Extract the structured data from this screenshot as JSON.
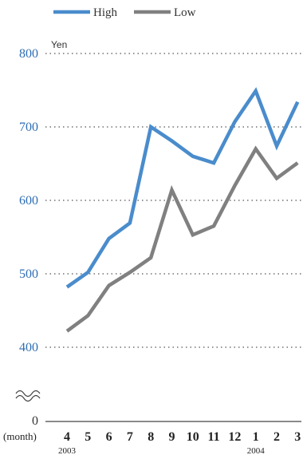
{
  "chart_data": {
    "type": "line",
    "categories": [
      "4",
      "5",
      "6",
      "7",
      "8",
      "9",
      "10",
      "11",
      "12",
      "1",
      "2",
      "3"
    ],
    "x_prefix_label": "(month)",
    "year_labels": [
      {
        "index": 0,
        "label": "2003"
      },
      {
        "index": 9,
        "label": "2004"
      }
    ],
    "y_unit": "Yen",
    "ylim": [
      400,
      800
    ],
    "y_ticks": [
      400,
      500,
      600,
      700,
      800
    ],
    "y_zero_label": "0",
    "axis_break": true,
    "grid": "dotted-horizontal",
    "legend_position": "top-left",
    "series": [
      {
        "name": "High",
        "color": "#4a8ccc",
        "values": [
          482,
          502,
          548,
          569,
          700,
          681,
          660,
          651,
          707,
          749,
          674,
          734
        ]
      },
      {
        "name": "Low",
        "color": "#808080",
        "values": [
          422,
          443,
          484,
          502,
          522,
          614,
          553,
          565,
          620,
          670,
          630,
          651
        ]
      }
    ]
  },
  "colors": {
    "ytick": "#2e6db4",
    "grid": "#555555",
    "axis": "#444444"
  }
}
